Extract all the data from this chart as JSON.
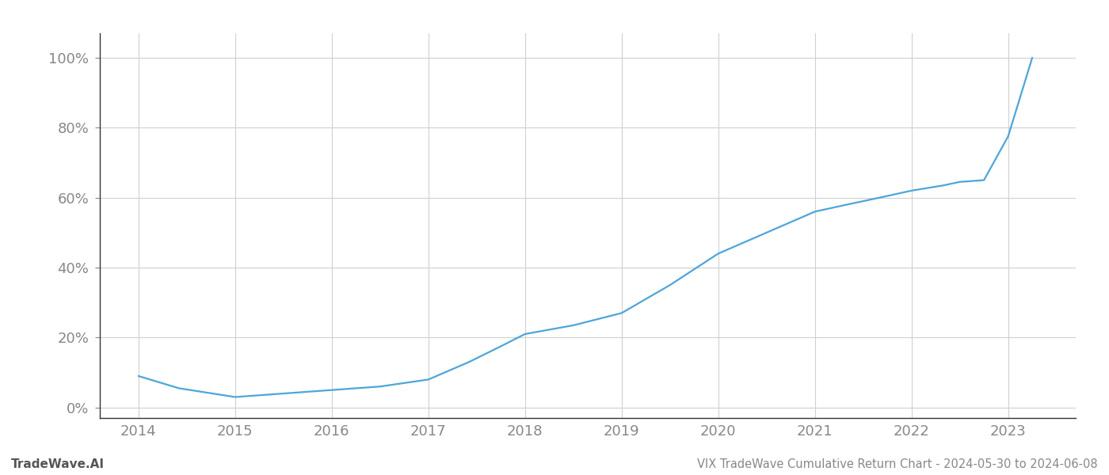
{
  "x_years": [
    2014,
    2014.42,
    2015,
    2015.5,
    2016,
    2016.5,
    2017,
    2017.42,
    2017.75,
    2018,
    2018.5,
    2019,
    2019.5,
    2020,
    2020.5,
    2021,
    2021.33,
    2021.67,
    2022,
    2022.33,
    2022.5,
    2022.75,
    2023,
    2023.25
  ],
  "y_values": [
    0.09,
    0.055,
    0.03,
    0.04,
    0.05,
    0.06,
    0.08,
    0.13,
    0.175,
    0.21,
    0.235,
    0.27,
    0.35,
    0.44,
    0.5,
    0.56,
    0.58,
    0.6,
    0.62,
    0.635,
    0.645,
    0.65,
    0.775,
    1.0
  ],
  "line_color": "#4da6d9",
  "line_width": 1.6,
  "background_color": "#ffffff",
  "grid_color": "#d0d0d0",
  "title": "VIX TradeWave Cumulative Return Chart - 2024-05-30 to 2024-06-08",
  "watermark": "TradeWave.AI",
  "ytick_labels": [
    "0%",
    "20%",
    "40%",
    "60%",
    "80%",
    "100%"
  ],
  "ytick_values": [
    0,
    0.2,
    0.4,
    0.6,
    0.8,
    1.0
  ],
  "xtick_labels": [
    "2014",
    "2015",
    "2016",
    "2017",
    "2018",
    "2019",
    "2020",
    "2021",
    "2022",
    "2023"
  ],
  "xtick_values": [
    2014,
    2015,
    2016,
    2017,
    2018,
    2019,
    2020,
    2021,
    2022,
    2023
  ],
  "xlim": [
    2013.6,
    2023.7
  ],
  "ylim": [
    -0.03,
    1.07
  ],
  "title_fontsize": 10.5,
  "watermark_fontsize": 11,
  "tick_fontsize": 13,
  "tick_color": "#aaaaaa",
  "label_color": "#888888",
  "spine_color": "#333333"
}
